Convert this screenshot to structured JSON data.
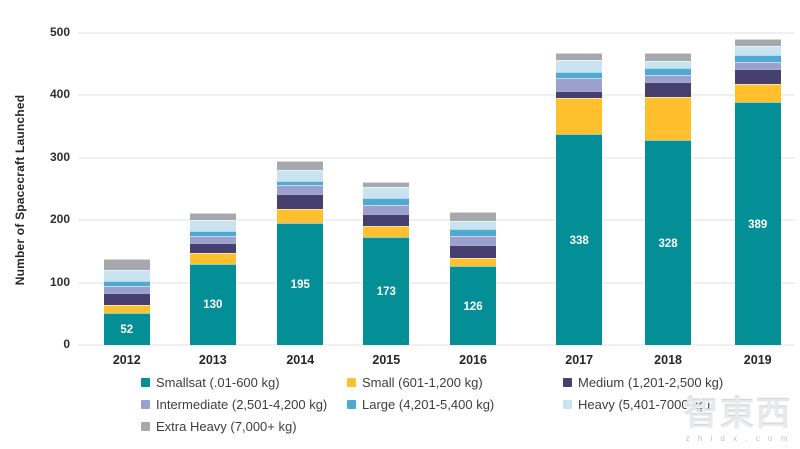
{
  "chart_data": {
    "type": "bar",
    "stacked": true,
    "title": "",
    "xlabel": "",
    "ylabel": "Number of Spacecraft Launched",
    "ylim": [
      0,
      500
    ],
    "yticks": [
      0,
      100,
      200,
      300,
      400,
      500
    ],
    "grid": true,
    "legend_position": "bottom",
    "categories": [
      "2012",
      "2013",
      "2014",
      "2015",
      "2016",
      "2017",
      "2018",
      "2019"
    ],
    "series": [
      {
        "name": "Smallsat (.01-600 kg)",
        "color": "#048E96",
        "values": [
          52,
          130,
          195,
          173,
          126,
          338,
          328,
          389
        ]
      },
      {
        "name": "Small (601-1,200 kg)",
        "color": "#FFC02E",
        "values": [
          12,
          18,
          23,
          17,
          14,
          58,
          70,
          30
        ]
      },
      {
        "name": "Medium (1,201-2,500 kg)",
        "color": "#45406F",
        "values": [
          20,
          15,
          24,
          20,
          20,
          11,
          23,
          23
        ]
      },
      {
        "name": "Intermediate (2,501-4,200 kg)",
        "color": "#9AA1CE",
        "values": [
          10,
          12,
          15,
          15,
          15,
          21,
          12,
          12
        ]
      },
      {
        "name": "Large (4,201-5,400 kg)",
        "color": "#4FAACF",
        "values": [
          8,
          7,
          6,
          10,
          11,
          10,
          11,
          10
        ]
      },
      {
        "name": "Heavy (5,401-7000 kg)",
        "color": "#C9E4F0",
        "values": [
          18,
          18,
          17,
          18,
          12,
          19,
          11,
          15
        ]
      },
      {
        "name": "Extra Heavy (7,000+ kg)",
        "color": "#A6A9AC",
        "values": [
          18,
          11,
          15,
          9,
          15,
          11,
          13,
          12
        ]
      }
    ],
    "bar_value_labels": [
      52,
      130,
      195,
      173,
      126,
      338,
      328,
      389
    ]
  },
  "watermark": {
    "logo_text": "智東西",
    "site_text": "z h i d x . c o m"
  }
}
